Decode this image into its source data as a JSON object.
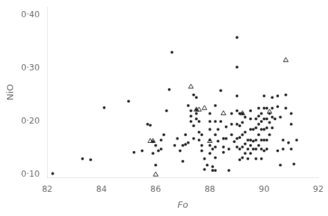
{
  "chart_data": {
    "type": "scatter",
    "xlabel": "Fo",
    "ylabel": "NiO",
    "xlim": [
      82,
      92
    ],
    "ylim": [
      0.095,
      0.415
    ],
    "xticks": [
      82,
      84,
      86,
      88,
      90,
      92
    ],
    "yticks": [
      {
        "value": 0.1,
        "label": "0·10"
      },
      {
        "value": 0.2,
        "label": "0·20"
      },
      {
        "value": 0.3,
        "label": "0·30"
      },
      {
        "value": 0.4,
        "label": "0·40"
      }
    ],
    "grid": false,
    "series": [
      {
        "marker": "circle",
        "color": "#1a1a1a",
        "values": [
          [
            82.2,
            0.102
          ],
          [
            83.3,
            0.13
          ],
          [
            83.6,
            0.128
          ],
          [
            84.1,
            0.226
          ],
          [
            85.0,
            0.238
          ],
          [
            85.2,
            0.142
          ],
          [
            85.5,
            0.145
          ],
          [
            85.7,
            0.195
          ],
          [
            85.8,
            0.193
          ],
          [
            85.9,
            0.162
          ],
          [
            85.9,
            0.14
          ],
          [
            86.0,
            0.118
          ],
          [
            86.0,
            0.155
          ],
          [
            86.1,
            0.145
          ],
          [
            86.2,
            0.165
          ],
          [
            86.2,
            0.148
          ],
          [
            86.3,
            0.175
          ],
          [
            86.4,
            0.22
          ],
          [
            86.5,
            0.26
          ],
          [
            86.6,
            0.33
          ],
          [
            86.7,
            0.155
          ],
          [
            86.8,
            0.168
          ],
          [
            86.9,
            0.145
          ],
          [
            87.0,
            0.125
          ],
          [
            87.0,
            0.155
          ],
          [
            87.1,
            0.175
          ],
          [
            87.1,
            0.157
          ],
          [
            87.2,
            0.16
          ],
          [
            87.2,
            0.23
          ],
          [
            87.3,
            0.22
          ],
          [
            87.3,
            0.21
          ],
          [
            87.3,
            0.2
          ],
          [
            87.4,
            0.192
          ],
          [
            87.4,
            0.168
          ],
          [
            87.4,
            0.25
          ],
          [
            87.5,
            0.245
          ],
          [
            87.5,
            0.222
          ],
          [
            87.5,
            0.215
          ],
          [
            87.5,
            0.205
          ],
          [
            87.6,
            0.2
          ],
          [
            87.6,
            0.18
          ],
          [
            87.6,
            0.165
          ],
          [
            87.7,
            0.175
          ],
          [
            87.7,
            0.155
          ],
          [
            87.7,
            0.145
          ],
          [
            87.8,
            0.13
          ],
          [
            87.8,
            0.11
          ],
          [
            87.9,
            0.118
          ],
          [
            88.0,
            0.215
          ],
          [
            88.0,
            0.2
          ],
          [
            88.0,
            0.185
          ],
          [
            88.0,
            0.165
          ],
          [
            88.0,
            0.155
          ],
          [
            88.0,
            0.14
          ],
          [
            88.1,
            0.148
          ],
          [
            88.1,
            0.115
          ],
          [
            88.1,
            0.108
          ],
          [
            88.2,
            0.23
          ],
          [
            88.2,
            0.2
          ],
          [
            88.2,
            0.175
          ],
          [
            88.2,
            0.152
          ],
          [
            88.2,
            0.132
          ],
          [
            88.2,
            0.108
          ],
          [
            88.3,
            0.185
          ],
          [
            88.3,
            0.163
          ],
          [
            88.4,
            0.258
          ],
          [
            88.4,
            0.2
          ],
          [
            88.5,
            0.168
          ],
          [
            88.5,
            0.152
          ],
          [
            88.5,
            0.142
          ],
          [
            88.6,
            0.19
          ],
          [
            88.6,
            0.168
          ],
          [
            88.7,
            0.148
          ],
          [
            88.7,
            0.108
          ],
          [
            88.8,
            0.215
          ],
          [
            88.8,
            0.195
          ],
          [
            88.8,
            0.175
          ],
          [
            88.9,
            0.162
          ],
          [
            89.0,
            0.358
          ],
          [
            89.0,
            0.302
          ],
          [
            89.0,
            0.248
          ],
          [
            89.0,
            0.22
          ],
          [
            89.0,
            0.195
          ],
          [
            89.0,
            0.168
          ],
          [
            89.0,
            0.152
          ],
          [
            89.1,
            0.215
          ],
          [
            89.1,
            0.192
          ],
          [
            89.1,
            0.17
          ],
          [
            89.1,
            0.148
          ],
          [
            89.1,
            0.128
          ],
          [
            89.2,
            0.215
          ],
          [
            89.2,
            0.198
          ],
          [
            89.2,
            0.175
          ],
          [
            89.2,
            0.152
          ],
          [
            89.2,
            0.132
          ],
          [
            89.3,
            0.208
          ],
          [
            89.3,
            0.18
          ],
          [
            89.3,
            0.158
          ],
          [
            89.3,
            0.14
          ],
          [
            89.4,
            0.165
          ],
          [
            89.4,
            0.148
          ],
          [
            89.4,
            0.13
          ],
          [
            89.5,
            0.22
          ],
          [
            89.5,
            0.205
          ],
          [
            89.5,
            0.185
          ],
          [
            89.5,
            0.165
          ],
          [
            89.5,
            0.155
          ],
          [
            89.5,
            0.14
          ],
          [
            89.6,
            0.185
          ],
          [
            89.6,
            0.163
          ],
          [
            89.6,
            0.148
          ],
          [
            89.7,
            0.205
          ],
          [
            89.7,
            0.188
          ],
          [
            89.7,
            0.165
          ],
          [
            89.7,
            0.148
          ],
          [
            89.7,
            0.13
          ],
          [
            89.8,
            0.225
          ],
          [
            89.8,
            0.21
          ],
          [
            89.8,
            0.195
          ],
          [
            89.8,
            0.175
          ],
          [
            89.8,
            0.155
          ],
          [
            89.9,
            0.215
          ],
          [
            89.9,
            0.2
          ],
          [
            89.9,
            0.185
          ],
          [
            89.9,
            0.165
          ],
          [
            89.9,
            0.148
          ],
          [
            89.9,
            0.13
          ],
          [
            90.0,
            0.248
          ],
          [
            90.0,
            0.225
          ],
          [
            90.0,
            0.205
          ],
          [
            90.0,
            0.185
          ],
          [
            90.0,
            0.165
          ],
          [
            90.0,
            0.145
          ],
          [
            90.1,
            0.225
          ],
          [
            90.1,
            0.205
          ],
          [
            90.1,
            0.188
          ],
          [
            90.1,
            0.165
          ],
          [
            90.1,
            0.148
          ],
          [
            90.2,
            0.215
          ],
          [
            90.2,
            0.198
          ],
          [
            90.2,
            0.175
          ],
          [
            90.3,
            0.245
          ],
          [
            90.3,
            0.225
          ],
          [
            90.3,
            0.208
          ],
          [
            90.3,
            0.188
          ],
          [
            90.4,
            0.205
          ],
          [
            90.5,
            0.248
          ],
          [
            90.5,
            0.228
          ],
          [
            90.5,
            0.145
          ],
          [
            90.6,
            0.118
          ],
          [
            90.6,
            0.208
          ],
          [
            90.7,
            0.165
          ],
          [
            90.7,
            0.148
          ],
          [
            90.8,
            0.25
          ],
          [
            90.8,
            0.225
          ],
          [
            90.9,
            0.16
          ],
          [
            91.0,
            0.215
          ],
          [
            91.0,
            0.195
          ],
          [
            91.0,
            0.148
          ],
          [
            91.1,
            0.12
          ],
          [
            91.2,
            0.165
          ]
        ]
      },
      {
        "marker": "triangle-open",
        "color": "#1a1a1a",
        "values": [
          [
            85.8,
            0.163
          ],
          [
            85.9,
            0.163
          ],
          [
            86.0,
            0.1
          ],
          [
            87.3,
            0.265
          ],
          [
            87.5,
            0.222
          ],
          [
            87.6,
            0.222
          ],
          [
            87.8,
            0.225
          ],
          [
            88.0,
            0.163
          ],
          [
            88.5,
            0.215
          ],
          [
            89.2,
            0.215
          ],
          [
            90.2,
            0.218
          ],
          [
            90.8,
            0.315
          ]
        ]
      }
    ]
  }
}
